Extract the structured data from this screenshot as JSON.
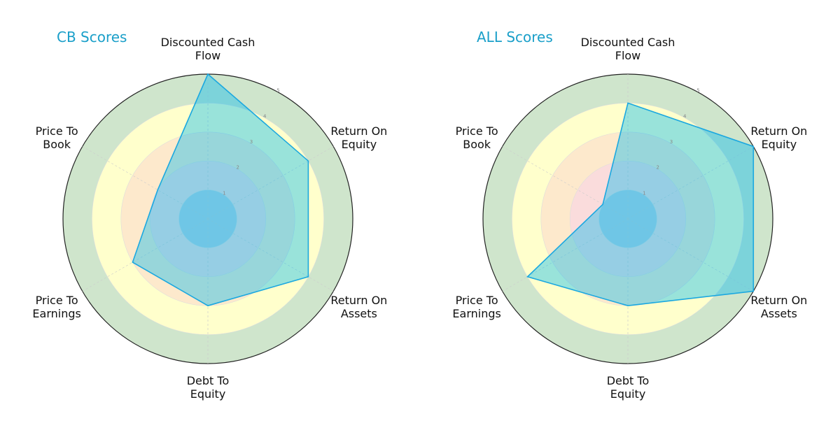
{
  "chart_data": [
    {
      "type": "radar",
      "title": "CB Scores",
      "categories": [
        "Discounted Cash Flow",
        "Return On Equity",
        "Return On Assets",
        "Debt To Equity",
        "Price To Earnings",
        "Price To Book"
      ],
      "values": [
        5,
        4,
        4,
        3,
        3,
        2
      ],
      "rlim": [
        0,
        5
      ],
      "r_ticks": [
        "1",
        "2",
        "3",
        "4",
        "5"
      ]
    },
    {
      "type": "radar",
      "title": "ALL Scores",
      "categories": [
        "Discounted Cash Flow",
        "Return On Equity",
        "Return On Assets",
        "Debt To Equity",
        "Price To Earnings",
        "Price To Book"
      ],
      "values": [
        4,
        5,
        5,
        3,
        4,
        1
      ],
      "rlim": [
        0,
        5
      ],
      "r_ticks": [
        "1",
        "2",
        "3",
        "4",
        "5"
      ]
    }
  ],
  "colors": {
    "title": "#1a9fc9",
    "polygon_fill": "#00b8f0",
    "polygon_stroke": "#1ba8e0",
    "band_colors": [
      "#b9cfe0",
      "#fadcdc",
      "#fde9cc",
      "#ffffcc",
      "#cfe5cc"
    ]
  }
}
